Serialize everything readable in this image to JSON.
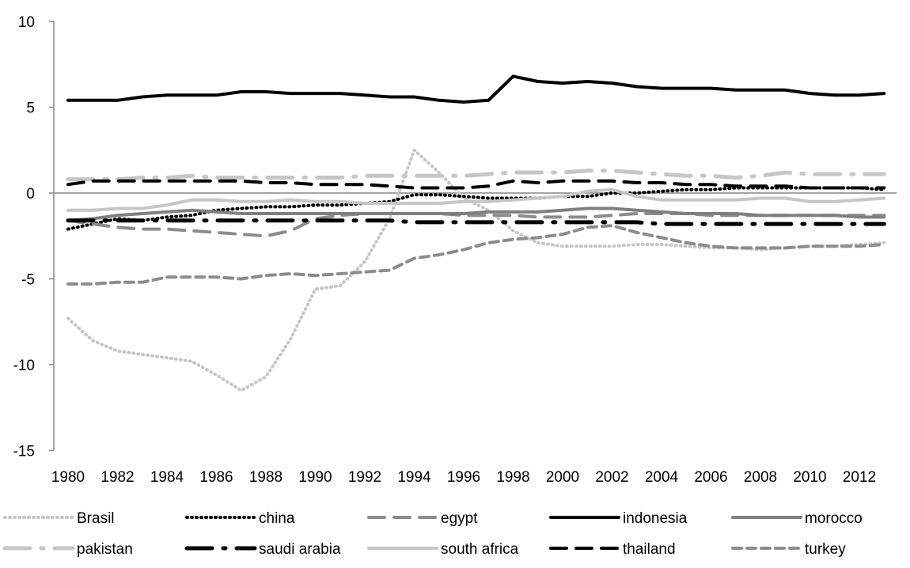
{
  "chart_data": {
    "type": "line",
    "title": "",
    "xlabel": "",
    "ylabel": "",
    "ylim": [
      -15,
      10
    ],
    "yticks": [
      -15,
      -10,
      -5,
      0,
      5,
      10
    ],
    "xlim": [
      1980,
      2013
    ],
    "xticks": [
      1980,
      1982,
      1984,
      1986,
      1988,
      1990,
      1992,
      1994,
      1996,
      1998,
      2000,
      2002,
      2004,
      2006,
      2008,
      2010,
      2012
    ],
    "grid": false,
    "legend_position": "bottom",
    "x": [
      1980,
      1981,
      1982,
      1983,
      1984,
      1985,
      1986,
      1987,
      1988,
      1989,
      1990,
      1991,
      1992,
      1993,
      1994,
      1995,
      1996,
      1997,
      1998,
      1999,
      2000,
      2001,
      2002,
      2003,
      2004,
      2005,
      2006,
      2007,
      2008,
      2009,
      2010,
      2011,
      2012,
      2013
    ],
    "series": [
      {
        "name": "Brasil",
        "color": "#c6c6c6",
        "dash": "1 5",
        "width": 4,
        "values": [
          -7.3,
          -8.6,
          -9.2,
          -9.4,
          -9.6,
          -9.8,
          -10.6,
          -11.5,
          -10.7,
          -8.5,
          -5.6,
          -5.4,
          -4.0,
          -1.5,
          2.5,
          1.2,
          -0.3,
          -1.0,
          -2.2,
          -2.9,
          -3.1,
          -3.1,
          -3.1,
          -3.0,
          -3.0,
          -3.1,
          -3.2,
          -3.2,
          -3.3,
          -3.2,
          -3.1,
          -3.1,
          -3.0,
          -2.9
        ]
      },
      {
        "name": "china",
        "color": "#000000",
        "dash": "1 5",
        "width": 4,
        "values": [
          -2.1,
          -1.8,
          -1.5,
          -1.6,
          -1.4,
          -1.3,
          -1.0,
          -0.9,
          -0.8,
          -0.8,
          -0.7,
          -0.7,
          -0.6,
          -0.5,
          -0.1,
          -0.1,
          -0.2,
          -0.3,
          -0.3,
          -0.3,
          -0.2,
          -0.2,
          0.0,
          0.0,
          0.1,
          0.2,
          0.2,
          0.3,
          0.3,
          0.3,
          0.3,
          0.3,
          0.3,
          0.2
        ]
      },
      {
        "name": "egypt",
        "color": "#8c8c8c",
        "dash": "20 12",
        "width": 4,
        "values": [
          -1.6,
          -1.8,
          -2.0,
          -2.1,
          -2.1,
          -2.2,
          -2.3,
          -2.4,
          -2.5,
          -2.2,
          -1.5,
          -1.3,
          -1.2,
          -1.2,
          -1.2,
          -1.2,
          -1.3,
          -1.3,
          -1.3,
          -1.4,
          -1.4,
          -1.4,
          -1.3,
          -1.2,
          -1.2,
          -1.2,
          -1.3,
          -1.3,
          -1.3,
          -1.3,
          -1.3,
          -1.3,
          -1.3,
          -1.3
        ]
      },
      {
        "name": "indonesia",
        "color": "#000000",
        "dash": "",
        "width": 4,
        "values": [
          5.4,
          5.4,
          5.4,
          5.6,
          5.7,
          5.7,
          5.7,
          5.9,
          5.9,
          5.8,
          5.8,
          5.8,
          5.7,
          5.6,
          5.6,
          5.4,
          5.3,
          5.4,
          6.8,
          6.5,
          6.4,
          6.5,
          6.4,
          6.2,
          6.1,
          6.1,
          6.1,
          6.0,
          6.0,
          6.0,
          5.8,
          5.7,
          5.7,
          5.8
        ]
      },
      {
        "name": "morocco",
        "color": "#7f7f7f",
        "dash": "",
        "width": 4,
        "values": [
          -1.6,
          -1.5,
          -1.3,
          -1.2,
          -1.1,
          -1.0,
          -1.1,
          -1.2,
          -1.2,
          -1.2,
          -1.2,
          -1.2,
          -1.2,
          -1.2,
          -1.2,
          -1.2,
          -1.2,
          -1.1,
          -1.1,
          -1.1,
          -1.0,
          -0.9,
          -0.9,
          -1.0,
          -1.1,
          -1.2,
          -1.2,
          -1.2,
          -1.3,
          -1.3,
          -1.3,
          -1.3,
          -1.4,
          -1.4
        ]
      },
      {
        "name": "pakistan",
        "color": "#c6c6c6",
        "dash": "32 14 3 14",
        "width": 5,
        "values": [
          0.8,
          0.8,
          0.8,
          0.9,
          0.9,
          1.0,
          0.9,
          0.9,
          0.9,
          0.9,
          0.9,
          0.9,
          1.0,
          1.0,
          1.0,
          1.0,
          1.0,
          1.1,
          1.2,
          1.2,
          1.2,
          1.3,
          1.3,
          1.2,
          1.1,
          1.0,
          1.0,
          0.9,
          1.0,
          1.2,
          1.1,
          1.1,
          1.1,
          1.1
        ]
      },
      {
        "name": "saudi arabia",
        "color": "#000000",
        "dash": "32 14 3 14",
        "width": 5,
        "values": [
          -1.6,
          -1.6,
          -1.6,
          -1.6,
          -1.6,
          -1.6,
          -1.6,
          -1.6,
          -1.6,
          -1.6,
          -1.6,
          -1.6,
          -1.6,
          -1.6,
          -1.7,
          -1.7,
          -1.7,
          -1.7,
          -1.7,
          -1.7,
          -1.7,
          -1.7,
          -1.7,
          -1.7,
          -1.8,
          -1.8,
          -1.8,
          -1.8,
          -1.8,
          -1.8,
          -1.8,
          -1.8,
          -1.8,
          -1.8
        ]
      },
      {
        "name": "south africa",
        "color": "#c6c6c6",
        "dash": "",
        "width": 4,
        "values": [
          -1.0,
          -1.0,
          -0.9,
          -0.9,
          -0.7,
          -0.4,
          -0.4,
          -0.5,
          -0.5,
          -0.4,
          -0.5,
          -0.5,
          -0.6,
          -0.6,
          -0.6,
          -0.6,
          -0.5,
          -0.5,
          -0.4,
          -0.3,
          -0.2,
          0.1,
          0.2,
          -0.2,
          -0.4,
          -0.4,
          -0.4,
          -0.4,
          -0.3,
          -0.3,
          -0.5,
          -0.5,
          -0.4,
          -0.3
        ]
      },
      {
        "name": "thailand",
        "color": "#000000",
        "dash": "20 12",
        "width": 4,
        "values": [
          0.5,
          0.7,
          0.7,
          0.7,
          0.7,
          0.7,
          0.7,
          0.7,
          0.6,
          0.6,
          0.5,
          0.5,
          0.5,
          0.4,
          0.3,
          0.3,
          0.3,
          0.4,
          0.7,
          0.6,
          0.7,
          0.7,
          0.7,
          0.6,
          0.6,
          0.5,
          0.5,
          0.4,
          0.4,
          0.4,
          0.3,
          0.3,
          0.3,
          0.3
        ]
      },
      {
        "name": "turkey",
        "color": "#8c8c8c",
        "dash": "11 7",
        "width": 4,
        "values": [
          -5.3,
          -5.3,
          -5.2,
          -5.2,
          -4.9,
          -4.9,
          -4.9,
          -5.0,
          -4.8,
          -4.7,
          -4.8,
          -4.7,
          -4.6,
          -4.5,
          -3.8,
          -3.6,
          -3.3,
          -2.9,
          -2.7,
          -2.6,
          -2.4,
          -2.0,
          -1.9,
          -2.3,
          -2.6,
          -2.9,
          -3.1,
          -3.2,
          -3.2,
          -3.2,
          -3.1,
          -3.1,
          -3.1,
          -3.0
        ]
      }
    ]
  }
}
